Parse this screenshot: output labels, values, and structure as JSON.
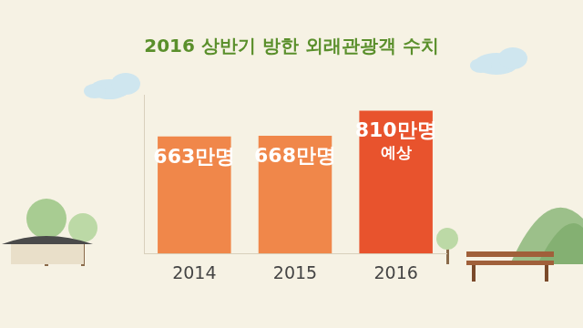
{
  "chart_data": {
    "type": "bar",
    "title": "2016 상반기 방한 외래관광객 수치",
    "categories": [
      "2014",
      "2015",
      "2016"
    ],
    "values": [
      663,
      668,
      810
    ],
    "value_labels": [
      "663만명",
      "668만명",
      "810만명 예상"
    ],
    "colors": [
      "#f0874a",
      "#f0874a",
      "#e8532d"
    ],
    "ylim": [
      0,
      900
    ],
    "data_labels": true,
    "tick_labels": "x",
    "grid": false
  }
}
